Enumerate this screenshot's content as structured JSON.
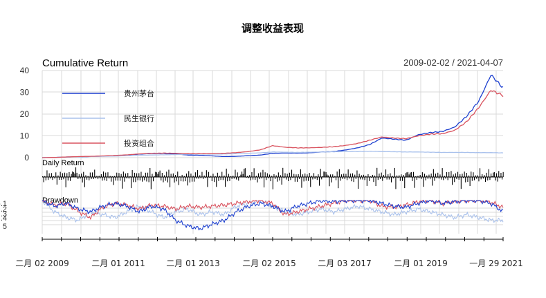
{
  "chart_data": {
    "type": "line",
    "title": "调整收益表现",
    "date_range": "2009-02-02 / 2021-04-07",
    "panels": [
      {
        "title": "Cumulative Return",
        "type": "line",
        "ylim": [
          0,
          40
        ],
        "yticks": [
          "40",
          "30",
          "20",
          "10",
          "0"
        ],
        "legend_position": "top-left",
        "grid": true
      },
      {
        "title": "Daily Return",
        "type": "bar",
        "grid": true
      },
      {
        "title": "Drawdown",
        "type": "line",
        "ylim": [
          -0.55,
          0
        ],
        "yticks": [
          "-.1",
          ".2",
          ".3",
          ".4",
          "5"
        ],
        "grid": true
      }
    ],
    "x": [
      "2009-02",
      "2009-06",
      "2009-10",
      "2010-02",
      "2010-06",
      "2010-10",
      "2011-02",
      "2011-06",
      "2011-10",
      "2012-02",
      "2012-06",
      "2012-10",
      "2013-02",
      "2013-06",
      "2013-10",
      "2014-02",
      "2014-06",
      "2014-10",
      "2015-02",
      "2015-06",
      "2015-10",
      "2016-02",
      "2016-06",
      "2016-10",
      "2017-02",
      "2017-06",
      "2017-10",
      "2018-02",
      "2018-06",
      "2018-10",
      "2019-02",
      "2019-06",
      "2019-10",
      "2020-02",
      "2020-06",
      "2020-10",
      "2021-01",
      "2021-02",
      "2021-04"
    ],
    "series": [
      {
        "name": "贵州茅台",
        "color": "#1c3fcf",
        "values": [
          0,
          0.1,
          0.3,
          0.4,
          0.5,
          0.7,
          0.9,
          1.2,
          1.6,
          1.9,
          1.9,
          1.7,
          1.2,
          1.1,
          0.8,
          0.5,
          0.6,
          0.9,
          1.2,
          2.0,
          2.1,
          2.1,
          2.2,
          2.6,
          2.8,
          3.5,
          4.5,
          6.0,
          9.0,
          8.5,
          8.0,
          10.5,
          11.5,
          12.0,
          14.0,
          19.0,
          26.0,
          38.0,
          32.0
        ]
      },
      {
        "name": "民生银行",
        "color": "#a9c1ec",
        "values": [
          0,
          0.1,
          0.3,
          0.4,
          0.5,
          0.6,
          0.7,
          0.9,
          1.1,
          1.2,
          1.3,
          1.4,
          1.6,
          1.6,
          1.6,
          1.7,
          1.8,
          2.0,
          2.2,
          2.6,
          2.5,
          2.4,
          2.5,
          2.6,
          2.7,
          2.8,
          2.8,
          2.9,
          2.8,
          2.7,
          2.6,
          2.6,
          2.5,
          2.4,
          2.4,
          2.4,
          2.3,
          2.3,
          2.2
        ]
      },
      {
        "name": "投资组合",
        "color": "#d9525e",
        "values": [
          0,
          0.1,
          0.3,
          0.5,
          0.6,
          0.8,
          1.0,
          1.3,
          1.7,
          2.0,
          2.1,
          2.0,
          1.8,
          1.8,
          1.8,
          2.0,
          2.3,
          2.8,
          3.6,
          5.5,
          4.8,
          4.5,
          4.5,
          4.7,
          5.0,
          5.6,
          6.5,
          8.0,
          9.5,
          9.0,
          8.7,
          10.0,
          10.8,
          11.0,
          12.5,
          16.5,
          23.0,
          31.0,
          28.5
        ]
      }
    ],
    "drawdown": [
      {
        "name": "贵州茅台",
        "values": [
          0,
          -0.1,
          -0.05,
          -0.15,
          -0.2,
          -0.1,
          -0.05,
          -0.1,
          -0.2,
          -0.1,
          -0.15,
          -0.35,
          -0.45,
          -0.5,
          -0.42,
          -0.35,
          -0.2,
          -0.1,
          -0.05,
          -0.1,
          -0.2,
          -0.1,
          -0.05,
          0,
          -0.02,
          0,
          0,
          0,
          -0.05,
          -0.1,
          -0.12,
          -0.05,
          0,
          -0.05,
          -0.02,
          0,
          0,
          -0.05,
          -0.2
        ]
      },
      {
        "name": "民生银行",
        "values": [
          0,
          -0.2,
          -0.3,
          -0.35,
          -0.2,
          -0.25,
          -0.3,
          -0.2,
          -0.1,
          -0.2,
          -0.3,
          -0.2,
          -0.15,
          -0.25,
          -0.2,
          -0.25,
          -0.1,
          -0.05,
          0,
          -0.1,
          -0.2,
          -0.25,
          -0.2,
          -0.15,
          -0.2,
          -0.15,
          -0.1,
          -0.15,
          -0.2,
          -0.25,
          -0.2,
          -0.15,
          -0.2,
          -0.25,
          -0.3,
          -0.25,
          -0.3,
          -0.35,
          -0.35
        ]
      },
      {
        "name": "投资组合",
        "values": [
          0,
          -0.08,
          -0.05,
          -0.2,
          -0.3,
          -0.12,
          -0.05,
          -0.08,
          -0.15,
          -0.08,
          -0.1,
          -0.15,
          -0.1,
          -0.12,
          -0.1,
          -0.08,
          -0.05,
          -0.02,
          0,
          -0.05,
          -0.25,
          -0.2,
          -0.15,
          -0.1,
          -0.05,
          0,
          0,
          0,
          -0.1,
          -0.12,
          -0.08,
          -0.02,
          0,
          -0.05,
          -0.02,
          0,
          0,
          -0.03,
          -0.12
        ]
      }
    ],
    "xticks": [
      "二月 02 2009",
      "二月 01 2011",
      "二月 01 2013",
      "二月 02 2015",
      "二月 03 2017",
      "二月 01 2019",
      "一月 29 2021"
    ]
  }
}
